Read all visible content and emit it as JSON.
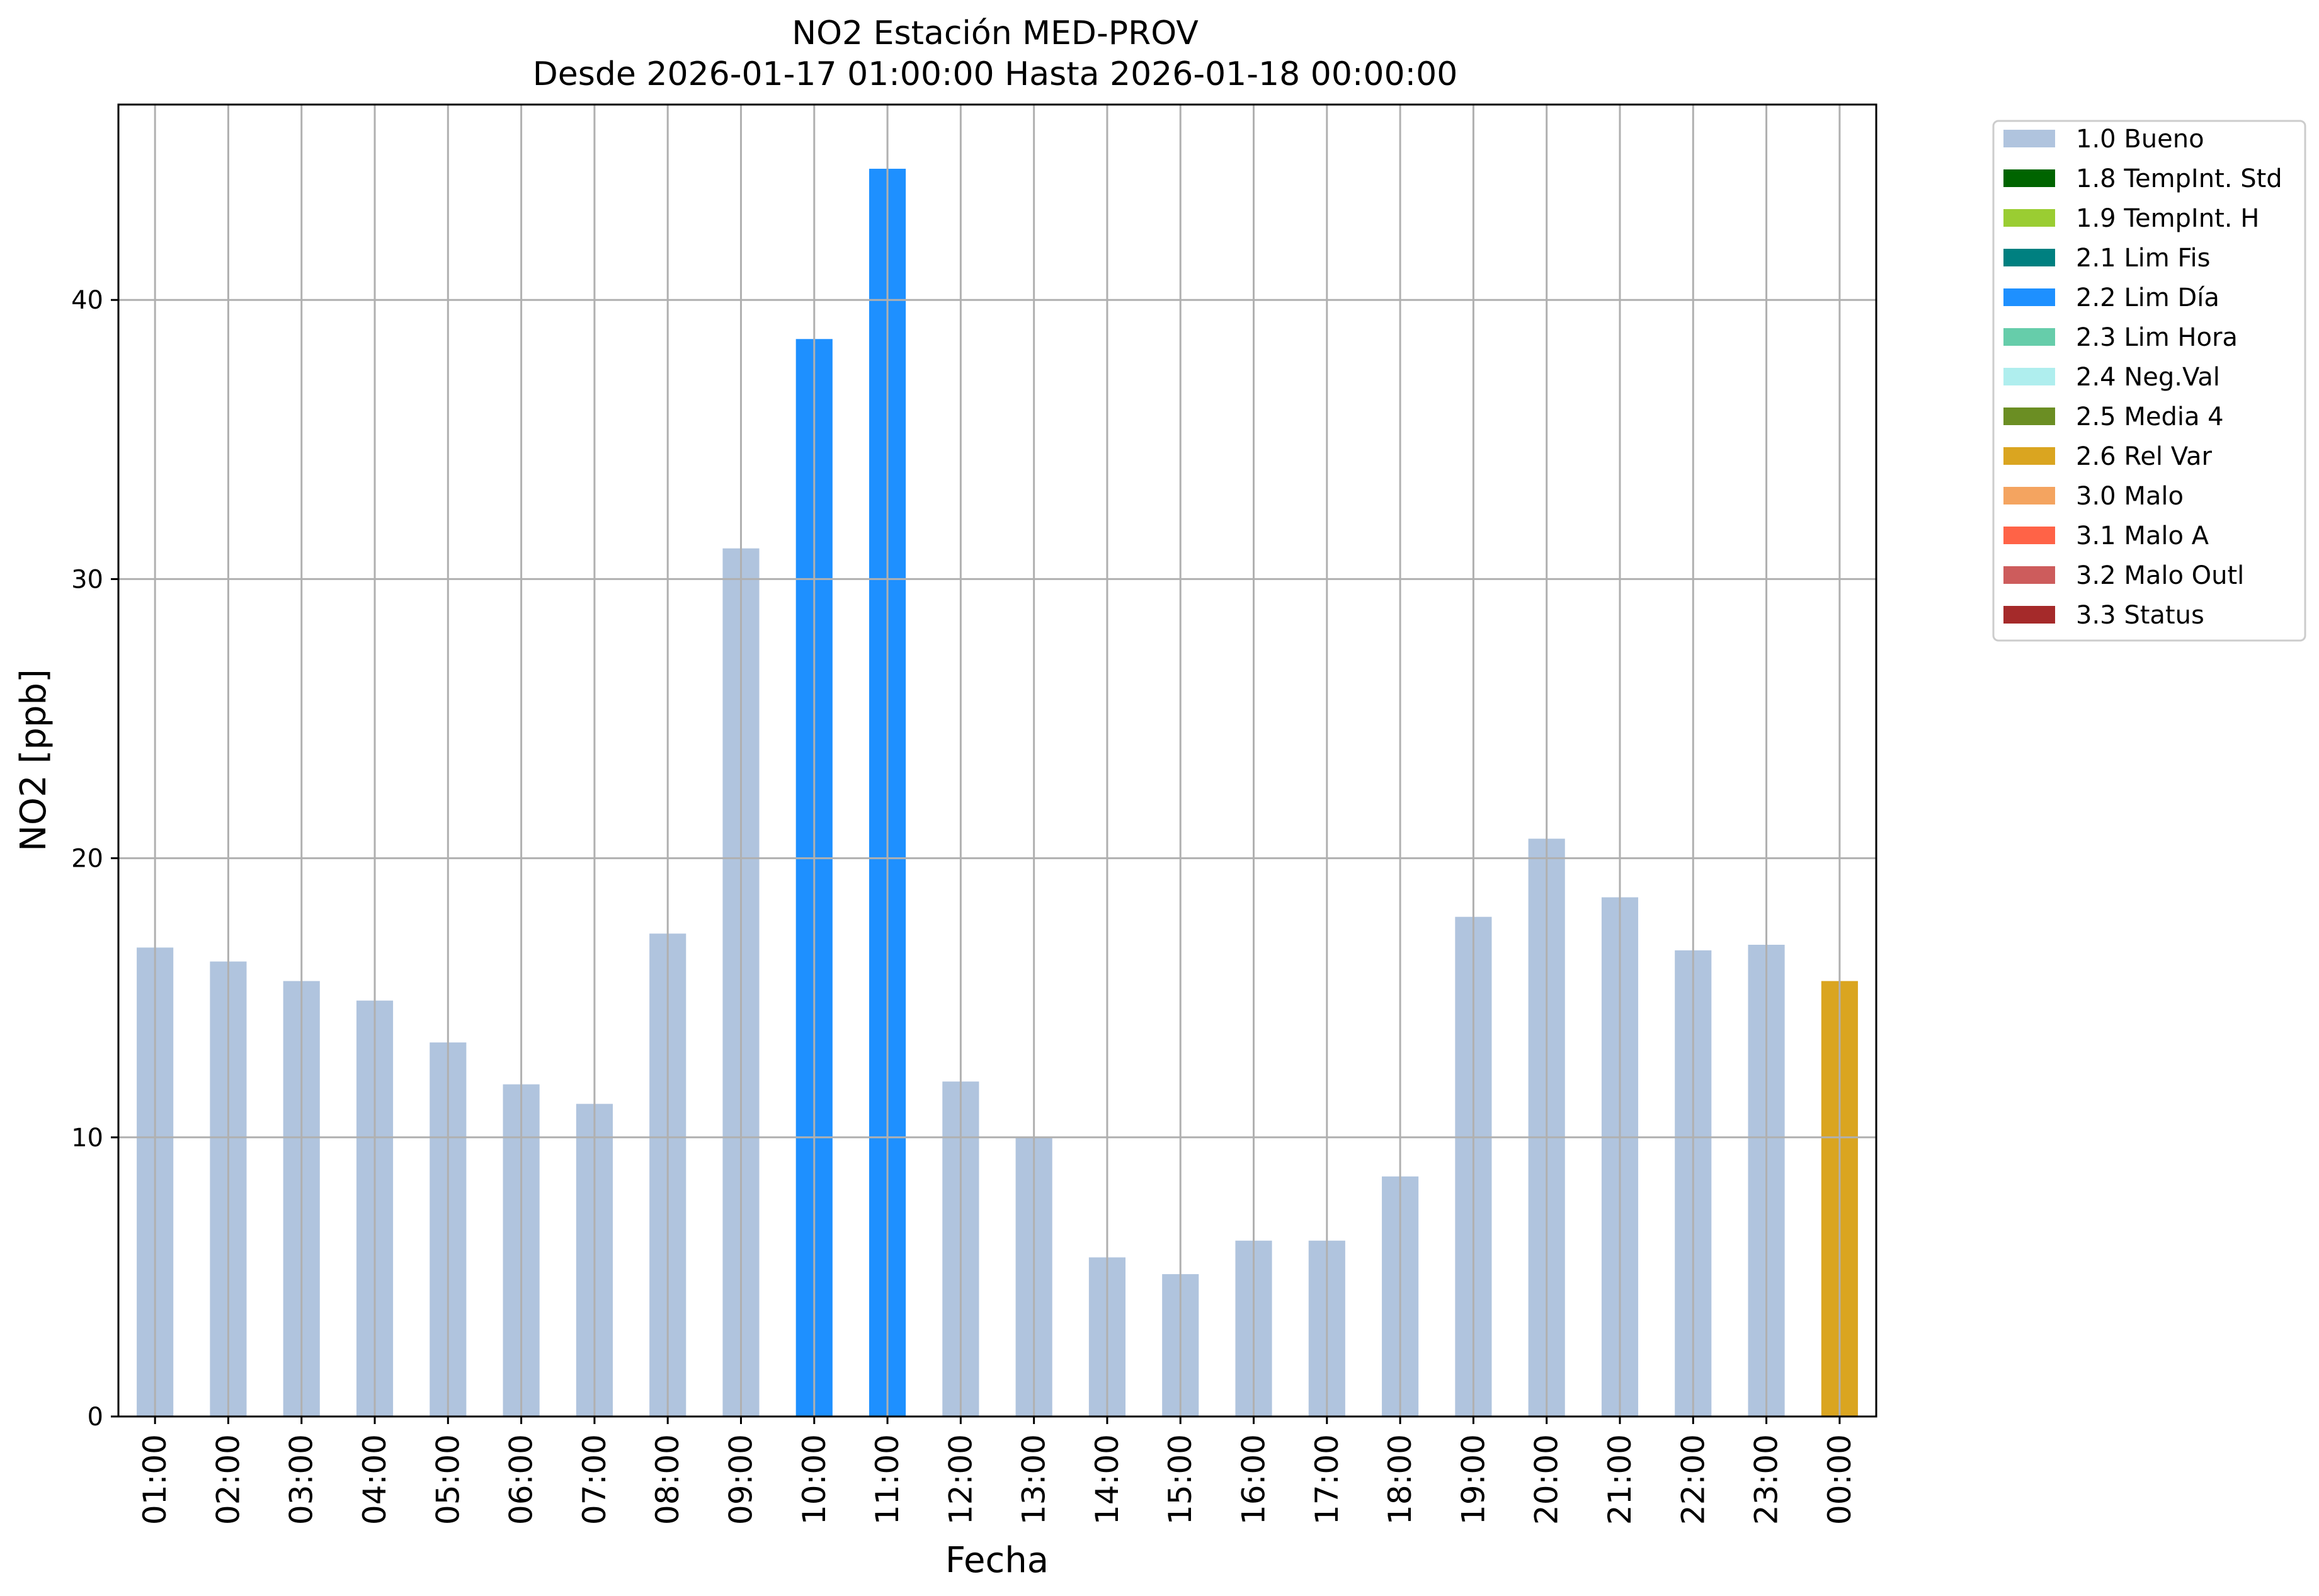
{
  "chart_data": {
    "type": "bar",
    "title": "NO2 Estación MED-PROV",
    "subtitle": "Desde 2026-01-17 01:00:00 Hasta 2026-01-18 00:00:00",
    "xlabel": "Fecha",
    "ylabel": "NO2 [ppb]",
    "ylim": [
      0,
      47
    ],
    "yticks": [
      0,
      10,
      20,
      30,
      40
    ],
    "grid": true,
    "legend_position": "outside-top-right",
    "categories": [
      "01:00",
      "02:00",
      "03:00",
      "04:00",
      "05:00",
      "06:00",
      "07:00",
      "08:00",
      "09:00",
      "10:00",
      "11:00",
      "12:00",
      "13:00",
      "14:00",
      "15:00",
      "16:00",
      "17:00",
      "18:00",
      "19:00",
      "20:00",
      "21:00",
      "22:00",
      "23:00",
      "00:00"
    ],
    "values": [
      16.8,
      16.3,
      15.6,
      14.9,
      13.4,
      11.9,
      11.2,
      17.3,
      31.1,
      38.6,
      44.7,
      12.0,
      10.0,
      5.7,
      5.1,
      6.3,
      6.3,
      8.6,
      17.9,
      20.7,
      18.6,
      16.7,
      16.9,
      15.6
    ],
    "flags": [
      "1.0 Bueno",
      "1.0 Bueno",
      "1.0 Bueno",
      "1.0 Bueno",
      "1.0 Bueno",
      "1.0 Bueno",
      "1.0 Bueno",
      "1.0 Bueno",
      "1.0 Bueno",
      "2.2 Lim Día",
      "2.2 Lim Día",
      "1.0 Bueno",
      "1.0 Bueno",
      "1.0 Bueno",
      "1.0 Bueno",
      "1.0 Bueno",
      "1.0 Bueno",
      "1.0 Bueno",
      "1.0 Bueno",
      "1.0 Bueno",
      "1.0 Bueno",
      "1.0 Bueno",
      "1.0 Bueno",
      "2.6 Rel Var"
    ],
    "legend": [
      {
        "label": "1.0 Bueno",
        "color": "#b0c4de"
      },
      {
        "label": "1.8 TempInt. Std",
        "color": "#006400"
      },
      {
        "label": "1.9 TempInt. H",
        "color": "#9acd32"
      },
      {
        "label": "2.1 Lim Fis",
        "color": "#008080"
      },
      {
        "label": "2.2 Lim Día",
        "color": "#1e90ff"
      },
      {
        "label": "2.3 Lim Hora",
        "color": "#66cdaa"
      },
      {
        "label": "2.4 Neg.Val",
        "color": "#afeeee"
      },
      {
        "label": "2.5 Media 4",
        "color": "#6b8e23"
      },
      {
        "label": "2.6 Rel Var",
        "color": "#daa520"
      },
      {
        "label": "3.0 Malo",
        "color": "#f4a460"
      },
      {
        "label": "3.1 Malo A",
        "color": "#ff6347"
      },
      {
        "label": "3.2 Malo Outl",
        "color": "#cd5c5c"
      },
      {
        "label": "3.3 Status",
        "color": "#a52a2a"
      }
    ]
  }
}
